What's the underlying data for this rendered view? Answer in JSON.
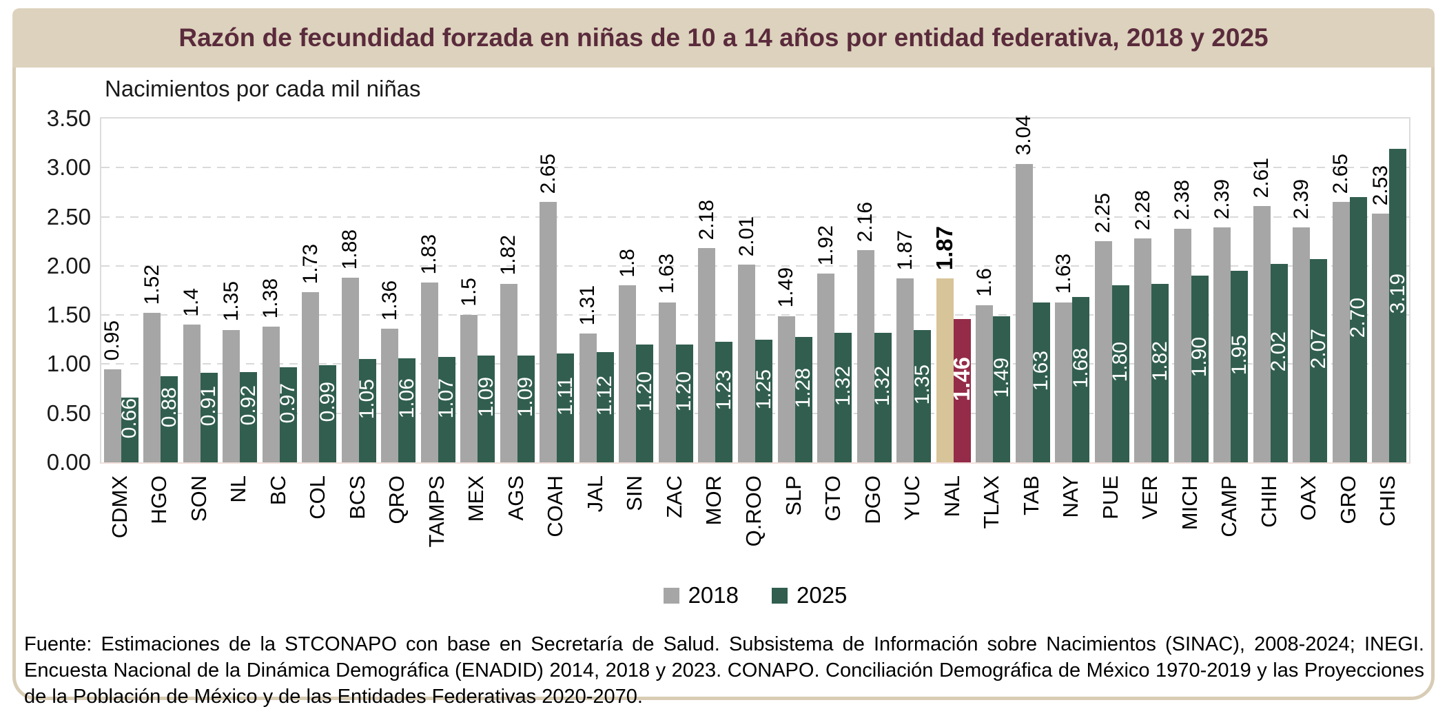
{
  "title": "Razón de fecundidad forzada en niñas de 10 a 14 años por entidad federativa, 2018 y 2025",
  "subtitle": "Nacimientos por cada mil niñas",
  "source": "Fuente: Estimaciones de la STCONAPO con base en Secretaría de Salud. Subsistema de Información sobre Nacimientos (SINAC), 2008-2024; INEGI. Encuesta Nacional de la Dinámica Demográfica (ENADID) 2014, 2018 y 2023. CONAPO. Conciliación Demográfica de México 1970-2019 y las Proyecciones de la Población de México y de las Entidades Federativas 2020-2070.",
  "colors": {
    "frame_border": "#d8ccb5",
    "title_bg": "#ddd2bd",
    "title_text": "#5a2b3c",
    "bar_2018": "#a6a6a6",
    "bar_2025": "#315e4f",
    "bar_2018_nal": "#d7c499",
    "bar_2025_nal": "#942b48",
    "gridline": "#d9d9d9"
  },
  "chart_data": {
    "type": "bar",
    "title": "Razón de fecundidad forzada en niñas de 10 a 14 años por entidad federativa, 2018 y 2025",
    "ylabel": "Nacimientos por cada mil niñas",
    "xlabel": "",
    "ylim": [
      0,
      3.5
    ],
    "ytick_step": 0.5,
    "ytick_labels_desc": [
      "3.50",
      "3.00",
      "2.50",
      "2.00",
      "1.50",
      "1.00",
      "0.50",
      "0.00"
    ],
    "grid": "dashed-horizontal",
    "legend_position": "bottom",
    "highlight_category": "NAL",
    "categories": [
      "CDMX",
      "HGO",
      "SON",
      "NL",
      "BC",
      "COL",
      "BCS",
      "QRO",
      "TAMPS",
      "MEX",
      "AGS",
      "COAH",
      "JAL",
      "SIN",
      "ZAC",
      "MOR",
      "Q.ROO",
      "SLP",
      "GTO",
      "DGO",
      "YUC",
      "NAL",
      "TLAX",
      "TAB",
      "NAY",
      "PUE",
      "VER",
      "MICH",
      "CAMP",
      "CHIH",
      "OAX",
      "GRO",
      "CHIS"
    ],
    "series": [
      {
        "name": "2018",
        "values": [
          0.95,
          1.52,
          1.4,
          1.35,
          1.38,
          1.73,
          1.88,
          1.36,
          1.83,
          1.5,
          1.82,
          2.65,
          1.31,
          1.8,
          1.63,
          2.18,
          2.01,
          1.49,
          1.92,
          2.16,
          1.87,
          1.87,
          1.6,
          3.04,
          1.63,
          2.25,
          2.28,
          2.38,
          2.39,
          2.61,
          2.39,
          2.65,
          2.53
        ],
        "labels": [
          "0.95",
          "1.52",
          "1.4",
          "1.35",
          "1.38",
          "1.73",
          "1.88",
          "1.36",
          "1.83",
          "1.5",
          "1.82",
          "2.65",
          "1.31",
          "1.8",
          "1.63",
          "2.18",
          "2.01",
          "1.49",
          "1.92",
          "2.16",
          "1.87",
          "1.87",
          "1.6",
          "3.04",
          "1.63",
          "2.25",
          "2.28",
          "2.38",
          "2.39",
          "2.61",
          "2.39",
          "2.65",
          "2.53"
        ]
      },
      {
        "name": "2025",
        "values": [
          0.66,
          0.88,
          0.91,
          0.92,
          0.97,
          0.99,
          1.05,
          1.06,
          1.07,
          1.09,
          1.09,
          1.11,
          1.12,
          1.2,
          1.2,
          1.23,
          1.25,
          1.28,
          1.32,
          1.32,
          1.35,
          1.46,
          1.49,
          1.63,
          1.68,
          1.8,
          1.82,
          1.9,
          1.95,
          2.02,
          2.07,
          2.7,
          3.19
        ],
        "labels": [
          "0.66",
          "0.88",
          "0.91",
          "0.92",
          "0.97",
          "0.99",
          "1.05",
          "1.06",
          "1.07",
          "1.09",
          "1.09",
          "1.11",
          "1.12",
          "1.20",
          "1.20",
          "1.23",
          "1.25",
          "1.28",
          "1.32",
          "1.32",
          "1.35",
          "1.46",
          "1.49",
          "1.63",
          "1.68",
          "1.80",
          "1.82",
          "1.90",
          "1.95",
          "2.02",
          "2.07",
          "2.70",
          "3.19"
        ]
      }
    ]
  }
}
